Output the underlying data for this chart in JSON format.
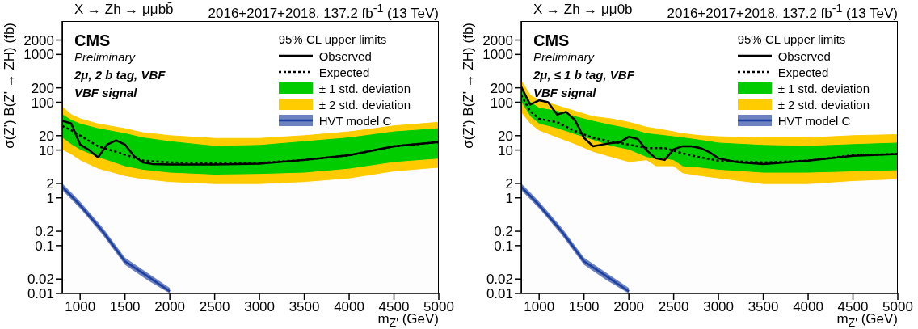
{
  "chart_data": [
    {
      "type": "line",
      "title": "X → Zh → μμbb̄",
      "subtitle": "2016+2017+2018, 137.2 fb$^{-1}$ (13 TeV)",
      "xlabel": "m$_{Z'}$ (GeV)",
      "ylabel": "σ(Z') B(Z' → ZH) (fb)",
      "legend_title": "95% CL upper limits",
      "legend": "top right",
      "log": "y",
      "grid": false,
      "annotations": [
        "CMS",
        "Preliminary",
        "2μ, 2 b tag, VBF",
        "VBF signal"
      ],
      "xlim": [
        800,
        5000
      ],
      "xticks": [
        1000,
        1500,
        2000,
        2500,
        3000,
        3500,
        4000,
        4500,
        5000
      ],
      "ylim": [
        0.01,
        5000
      ],
      "yticks": [
        0.01,
        0.02,
        0.1,
        0.2,
        1,
        2,
        10,
        20,
        100,
        200,
        1000,
        2000
      ],
      "series": [
        {
          "name": "Observed",
          "type": "line",
          "line_style": "solid",
          "color": "#000000",
          "x": [
            800,
            900,
            1000,
            1100,
            1200,
            1300,
            1400,
            1500,
            1600,
            1700,
            1800,
            2000,
            2500,
            3000,
            3500,
            4000,
            4500,
            5000
          ],
          "values": [
            41,
            36,
            13,
            10,
            7,
            13,
            16,
            13,
            7.5,
            5.5,
            5.1,
            5,
            5,
            5.2,
            6.2,
            7.8,
            12,
            14.7
          ]
        },
        {
          "name": "Expected",
          "type": "line",
          "line_style": "dotted",
          "color": "#000000",
          "x": [
            800,
            900,
            1000,
            1200,
            1500,
            1700,
            2000,
            2500,
            3000,
            3500,
            4000,
            4500,
            5000
          ],
          "values": [
            32,
            26,
            20,
            12,
            8,
            6,
            5.5,
            5.3,
            5.4,
            6.2,
            7.8,
            12,
            14.7
          ]
        },
        {
          "name": "± 2 std. deviation",
          "type": "area",
          "color": "#ffcc00",
          "x": [
            800,
            900,
            1000,
            1200,
            1500,
            1700,
            2000,
            2500,
            3000,
            3500,
            4000,
            4500,
            5000
          ],
          "values": [
            80,
            55,
            45,
            35,
            28,
            23,
            20,
            17.5,
            17.5,
            20,
            24,
            32,
            38
          ]
        },
        {
          "name": "± 1 std. deviation",
          "type": "area",
          "color": "#00cc00",
          "x": [
            800,
            900,
            1000,
            1200,
            1500,
            1700,
            2000,
            2500,
            3000,
            3500,
            4000,
            4500,
            5000
          ],
          "values": [
            55,
            42,
            35,
            28,
            22,
            18,
            15,
            12,
            12.5,
            15,
            18,
            24,
            28
          ]
        },
        {
          "type": "area",
          "color": "#ffcb00",
          "x": [
            800,
            900,
            1000,
            1200,
            1500,
            1700,
            2000,
            2500,
            3000,
            3500,
            4000,
            4500,
            5000
          ],
          "values": [
            18,
            13,
            10,
            7,
            4.5,
            3.8,
            3.3,
            3,
            3.1,
            3.3,
            4,
            5.5,
            6.5
          ]
        },
        {
          "type": "area",
          "color": "#fdfdfd",
          "x": [
            800,
            900,
            1000,
            1200,
            1500,
            1700,
            2000,
            2500,
            3000,
            3500,
            4000,
            4500,
            5000
          ],
          "values": [
            10,
            8,
            6,
            4,
            2.8,
            2.4,
            2.1,
            1.9,
            1.9,
            2.1,
            2.5,
            3.5,
            4.2
          ]
        },
        {
          "name": "HVT model C",
          "type": "line",
          "line_style": "solid",
          "color": "#1d3fa0",
          "x": [
            800,
            900,
            1000,
            1250,
            1500,
            1750,
            2000
          ],
          "values": [
            1.7,
            1.1,
            0.7,
            0.2,
            0.047,
            0.023,
            0.011
          ],
          "lower": [
            1.45,
            0.93,
            0.6,
            0.17,
            0.04,
            0.019,
            0.01
          ],
          "upper": [
            2,
            1.3,
            0.83,
            0.24,
            0.056,
            0.027,
            0.013
          ]
        }
      ]
    },
    {
      "type": "line",
      "title": "X → Zh → μμ0b",
      "subtitle": "2016+2017+2018, 137.2 fb$^{-1}$ (13 TeV)",
      "xlabel": "m$_{Z'}$ (GeV)",
      "ylabel": "σ(Z') B(Z' → ZH) (fb)",
      "legend_title": "95% CL upper limits",
      "legend": "top right",
      "log": "y",
      "grid": false,
      "annotations": [
        "CMS",
        "Preliminary",
        "2μ, ≤ 1 b tag, VBF",
        "VBF signal"
      ],
      "xlim": [
        800,
        5000
      ],
      "xticks": [
        1000,
        1500,
        2000,
        2500,
        3000,
        3500,
        4000,
        4500,
        5000
      ],
      "ylim": [
        0.01,
        5000
      ],
      "yticks": [
        0.01,
        0.02,
        0.1,
        0.2,
        1,
        2,
        10,
        20,
        100,
        200,
        1000,
        2000
      ],
      "series": [
        {
          "name": "Observed",
          "type": "line",
          "line_style": "solid",
          "color": "#000000",
          "x": [
            800,
            900,
            1000,
            1100,
            1200,
            1300,
            1400,
            1500,
            1600,
            1700,
            1800,
            1900,
            2000,
            2100,
            2200,
            2300,
            2400,
            2500,
            2600,
            2700,
            2800,
            2900,
            3000,
            3200,
            3500,
            4000,
            4500,
            5000
          ],
          "values": [
            210,
            89,
            110,
            100,
            55,
            63,
            42,
            18,
            12,
            13,
            14,
            14.5,
            19,
            17,
            9.8,
            6.7,
            6.2,
            10.4,
            12,
            12,
            11,
            9,
            6.7,
            5.6,
            5.1,
            6,
            7.6,
            8.3
          ]
        },
        {
          "name": "Expected",
          "type": "line",
          "line_style": "dotted",
          "color": "#000000",
          "x": [
            800,
            900,
            1000,
            1200,
            1400,
            1600,
            1800,
            2000,
            2200,
            2400,
            2600,
            2800,
            3000,
            3500,
            4000,
            4500,
            5000
          ],
          "values": [
            140,
            65,
            45,
            38,
            25,
            18,
            15,
            13,
            11,
            11,
            8.5,
            7,
            6,
            5.5,
            6,
            7.8,
            8.3
          ]
        },
        {
          "name": "± 2 std. deviation",
          "type": "area",
          "color": "#ffcc00",
          "x": [
            800,
            900,
            1000,
            1200,
            1400,
            1600,
            1800,
            2000,
            2200,
            2300,
            2400,
            2500,
            2600,
            2800,
            3000,
            3500,
            4000,
            4500,
            5000
          ],
          "values": [
            280,
            140,
            110,
            85,
            65,
            50,
            45,
            38,
            30,
            28,
            26,
            24,
            22,
            20,
            19,
            18,
            18,
            20,
            21
          ]
        },
        {
          "name": "± 1 std. deviation",
          "type": "area",
          "color": "#00cc00",
          "x": [
            800,
            900,
            1000,
            1200,
            1400,
            1600,
            1800,
            2000,
            2200,
            2300,
            2400,
            2500,
            2600,
            2800,
            3000,
            3500,
            4000,
            4500,
            5000
          ],
          "values": [
            190,
            100,
            75,
            65,
            50,
            40,
            33,
            28,
            22,
            21,
            20,
            19,
            18,
            16,
            14,
            12.5,
            12,
            13,
            14
          ]
        },
        {
          "type": "area",
          "color": "#ffcb00",
          "x": [
            800,
            900,
            1000,
            1200,
            1400,
            1600,
            1800,
            2000,
            2200,
            2300,
            2400,
            2500,
            2600,
            2800,
            3000,
            3500,
            4000,
            4500,
            5000
          ],
          "values": [
            100,
            50,
            35,
            28,
            21,
            16,
            12,
            10,
            7,
            6.5,
            6.5,
            6,
            4.5,
            4.2,
            3.8,
            3.3,
            3.3,
            3.5,
            3.7
          ]
        },
        {
          "type": "area",
          "color": "#fdfdfd",
          "x": [
            800,
            900,
            1000,
            1200,
            1400,
            1600,
            1800,
            2000,
            2200,
            2300,
            2400,
            2500,
            2600,
            2800,
            3000,
            3500,
            4000,
            4500,
            5000
          ],
          "values": [
            60,
            35,
            25,
            18,
            13,
            9,
            7,
            5.5,
            6,
            4.5,
            4.5,
            4.5,
            3.2,
            2.8,
            2.5,
            1.9,
            1.9,
            2.2,
            2.4
          ]
        },
        {
          "name": "HVT model C",
          "type": "line",
          "line_style": "solid",
          "color": "#1d3fa0",
          "x": [
            800,
            900,
            1000,
            1250,
            1500,
            1750,
            2000
          ],
          "values": [
            1.7,
            1.1,
            0.7,
            0.2,
            0.047,
            0.023,
            0.011
          ],
          "lower": [
            1.45,
            0.93,
            0.6,
            0.17,
            0.04,
            0.019,
            0.01
          ],
          "upper": [
            2,
            1.3,
            0.83,
            0.24,
            0.056,
            0.027,
            0.013
          ]
        }
      ]
    }
  ]
}
